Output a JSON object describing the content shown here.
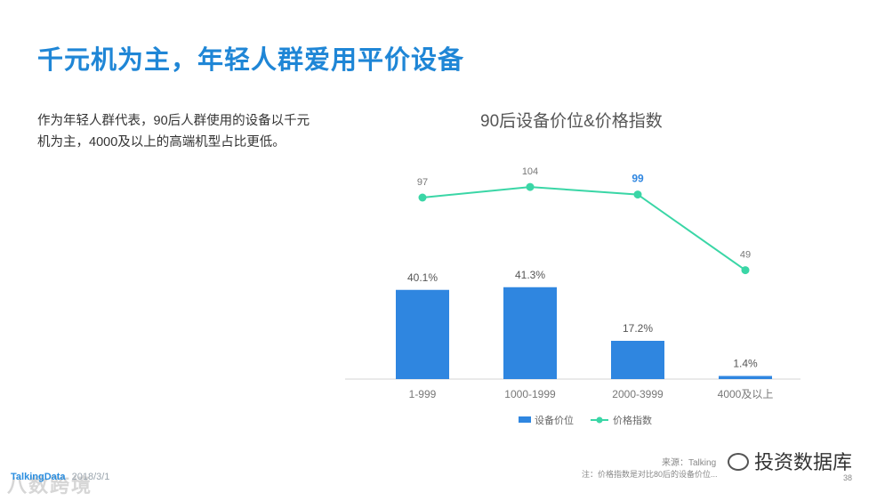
{
  "slide": {
    "title": "千元机为主，年轻人群爱用平价设备",
    "description": "作为年轻人群代表，90后人群使用的设备以千元机为主，4000及以上的高端机型占比更低。"
  },
  "chart_data": {
    "type": "bar",
    "title": "90后设备价位&价格指数",
    "categories": [
      "1-999",
      "1000-1999",
      "2000-3999",
      "4000及以上"
    ],
    "series": [
      {
        "name": "设备价位",
        "type": "bar",
        "values": [
          40.1,
          41.3,
          17.2,
          1.4
        ],
        "labels": [
          "40.1%",
          "41.3%",
          "17.2%",
          "1.4%"
        ],
        "color": "#2f86e0"
      },
      {
        "name": "价格指数",
        "type": "line",
        "values": [
          97,
          104,
          99,
          49
        ],
        "labels": [
          "97",
          "104",
          "99",
          "49"
        ],
        "highlight_index": 2,
        "color": "#3ad6a6"
      }
    ],
    "legend": "bottom-center"
  },
  "footer": {
    "brand": "TalkingData",
    "date": "2018/3/1",
    "watermark_left": "八数跨境",
    "source": "来源：Talking",
    "footnote": "注：价格指数是对比80后的设备价位...",
    "page": "38",
    "watermark_right": "投资数据库"
  },
  "colors": {
    "title": "#1f86d6",
    "bar": "#2f86e0",
    "line": "#3ad6a6",
    "highlight_label": "#2f86e0"
  }
}
